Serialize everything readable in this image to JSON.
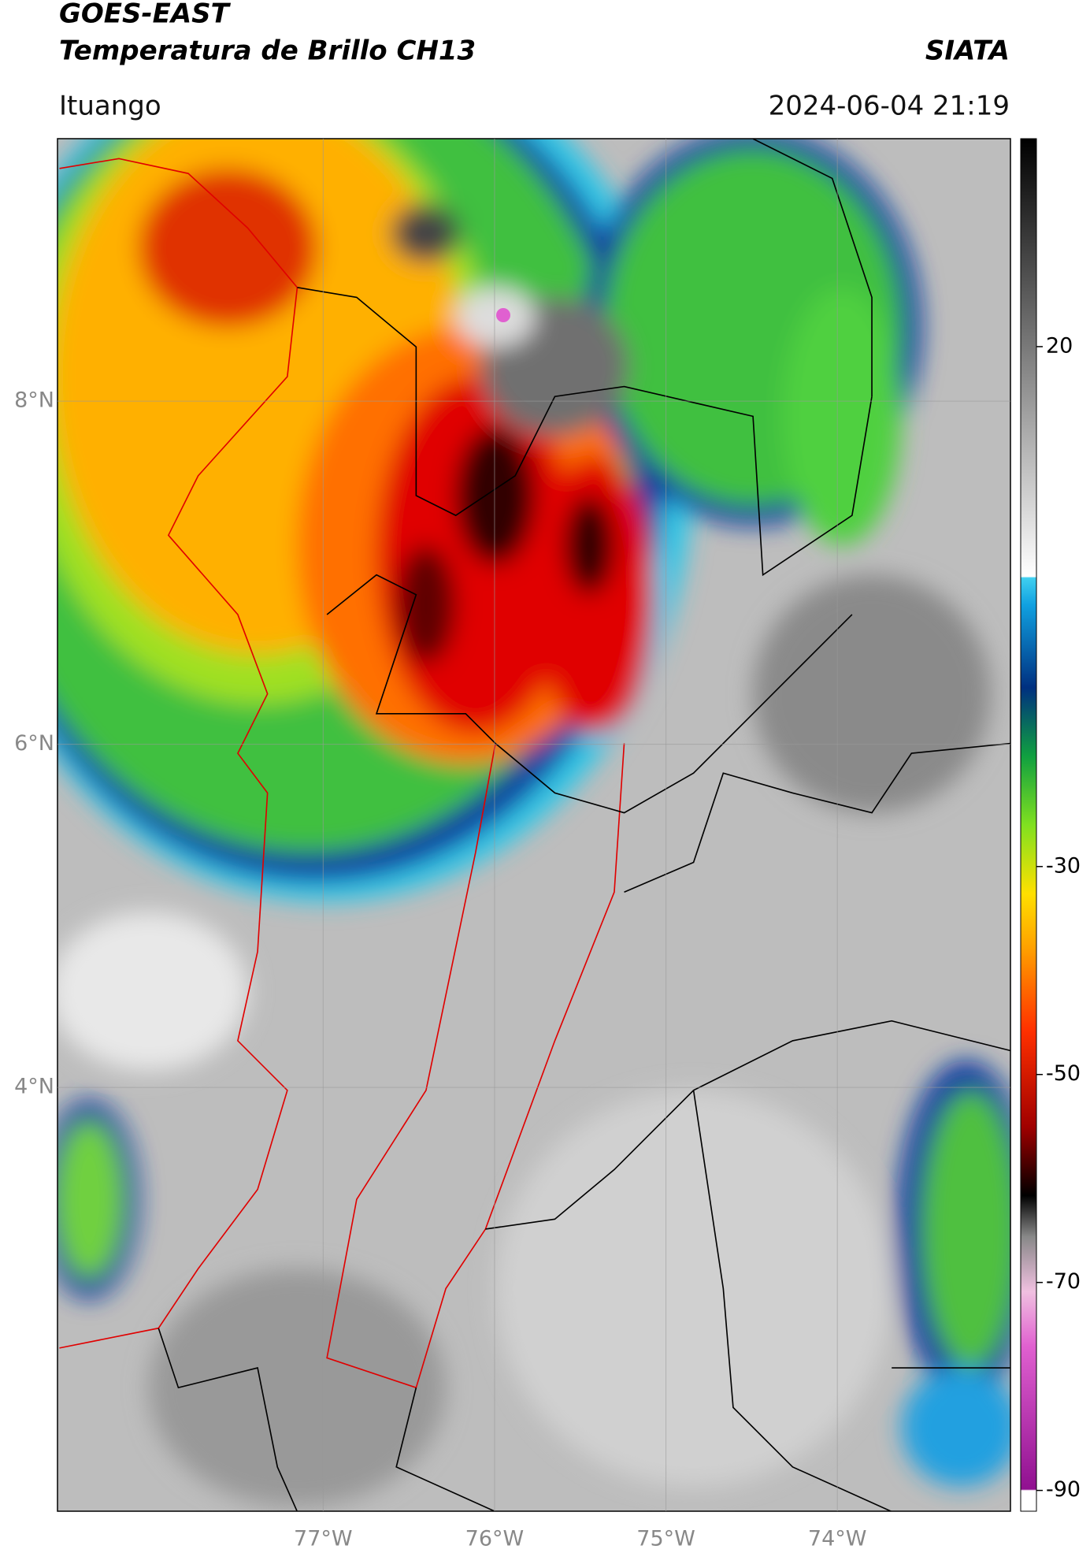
{
  "header": {
    "title": "GOES-EAST",
    "subtitle": "Temperatura de Brillo CH13",
    "source": "SIATA",
    "location": "Ituango",
    "datetime": "2024-06-04 21:19"
  },
  "map": {
    "xlim": [
      -78.55,
      -72.99
    ],
    "ylim": [
      1.53,
      9.53
    ],
    "xticks": [
      {
        "value": -77,
        "label": "77°W"
      },
      {
        "value": -76,
        "label": "76°W"
      },
      {
        "value": -75,
        "label": "75°W"
      },
      {
        "value": -74,
        "label": "74°W"
      }
    ],
    "yticks": [
      {
        "value": 8,
        "label": "8°N"
      },
      {
        "value": 6,
        "label": "6°N"
      },
      {
        "value": 4,
        "label": "4°N"
      }
    ],
    "grid": true
  },
  "colorbar": {
    "lim": [
      -92,
      40
    ],
    "ticks": [
      20,
      -30,
      -50,
      -70,
      -90
    ]
  }
}
